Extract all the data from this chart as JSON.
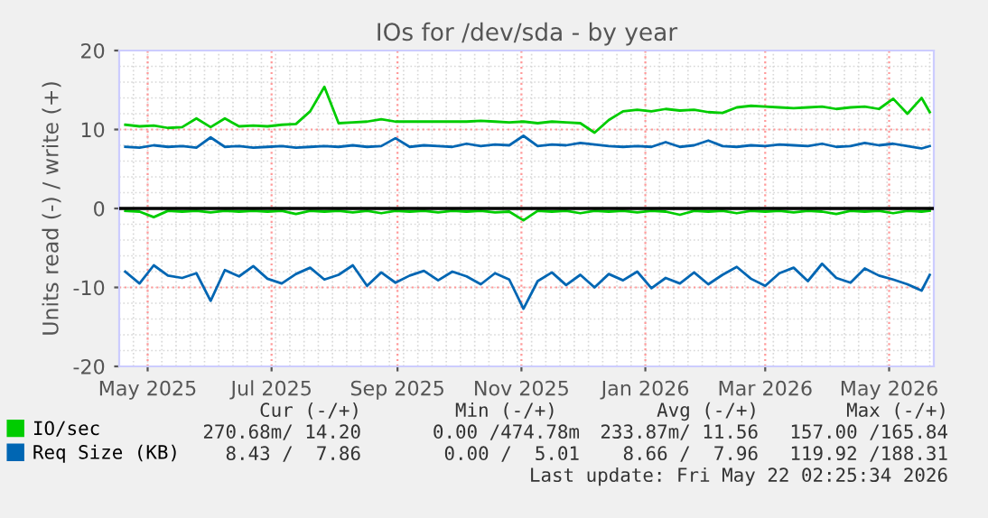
{
  "chart_data": {
    "type": "line",
    "title": "IOs for /dev/sda - by year",
    "ylabel": "Units read (-) / write (+)",
    "x": [
      "2025-04-20",
      "2025-04-27",
      "2025-05-04",
      "2025-05-11",
      "2025-05-18",
      "2025-05-25",
      "2025-06-01",
      "2025-06-08",
      "2025-06-15",
      "2025-06-22",
      "2025-06-29",
      "2025-07-06",
      "2025-07-13",
      "2025-07-20",
      "2025-07-27",
      "2025-08-03",
      "2025-08-10",
      "2025-08-17",
      "2025-08-24",
      "2025-08-31",
      "2025-09-07",
      "2025-09-14",
      "2025-09-21",
      "2025-09-28",
      "2025-10-05",
      "2025-10-12",
      "2025-10-19",
      "2025-10-26",
      "2025-11-02",
      "2025-11-09",
      "2025-11-16",
      "2025-11-23",
      "2025-11-30",
      "2025-12-07",
      "2025-12-14",
      "2025-12-21",
      "2025-12-28",
      "2026-01-04",
      "2026-01-11",
      "2026-01-18",
      "2026-01-25",
      "2026-02-01",
      "2026-02-08",
      "2026-02-15",
      "2026-02-22",
      "2026-03-01",
      "2026-03-08",
      "2026-03-15",
      "2026-03-22",
      "2026-03-29",
      "2026-04-05",
      "2026-04-12",
      "2026-04-19",
      "2026-04-26",
      "2026-05-03",
      "2026-05-10",
      "2026-05-17",
      "2026-05-21"
    ],
    "series": [
      {
        "name": "IO/sec",
        "color": "#00cc00",
        "values": [
          10.6,
          10.4,
          10.5,
          10.2,
          10.3,
          11.4,
          10.3,
          11.4,
          10.4,
          10.5,
          10.4,
          10.6,
          10.7,
          12.3,
          15.4,
          10.8,
          10.9,
          11.0,
          11.3,
          11.0,
          11.0,
          11.0,
          11.0,
          11.0,
          11.0,
          11.1,
          11.0,
          10.9,
          11.0,
          10.8,
          11.0,
          10.9,
          10.8,
          9.6,
          11.2,
          12.3,
          12.5,
          12.3,
          12.6,
          12.4,
          12.5,
          12.2,
          12.1,
          12.8,
          13.0,
          12.9,
          12.8,
          12.7,
          12.8,
          12.9,
          12.6,
          12.8,
          12.9,
          12.6,
          13.9,
          12.0,
          14.0,
          12.2
        ]
      },
      {
        "color": "#00cc00",
        "values": [
          -0.3,
          -0.4,
          -1.1,
          -0.3,
          -0.4,
          -0.3,
          -0.5,
          -0.3,
          -0.4,
          -0.3,
          -0.4,
          -0.3,
          -0.7,
          -0.3,
          -0.4,
          -0.3,
          -0.5,
          -0.3,
          -0.6,
          -0.3,
          -0.4,
          -0.3,
          -0.5,
          -0.3,
          -0.4,
          -0.3,
          -0.5,
          -0.4,
          -1.5,
          -0.3,
          -0.4,
          -0.3,
          -0.6,
          -0.3,
          -0.4,
          -0.3,
          -0.5,
          -0.3,
          -0.4,
          -0.8,
          -0.3,
          -0.4,
          -0.3,
          -0.6,
          -0.3,
          -0.4,
          -0.3,
          -0.5,
          -0.3,
          -0.4,
          -0.7,
          -0.3,
          -0.4,
          -0.3,
          -0.6,
          -0.3,
          -0.4,
          -0.3
        ]
      },
      {
        "name": "Req Size (KB)",
        "color": "#0066b3",
        "values": [
          7.8,
          7.7,
          8.0,
          7.8,
          7.9,
          7.7,
          9.0,
          7.8,
          7.9,
          7.7,
          7.8,
          7.9,
          7.7,
          7.8,
          7.9,
          7.8,
          8.0,
          7.8,
          7.9,
          8.9,
          7.8,
          8.0,
          7.9,
          7.8,
          8.2,
          7.9,
          8.1,
          8.0,
          9.2,
          7.9,
          8.1,
          8.0,
          8.3,
          8.1,
          7.9,
          7.8,
          7.9,
          7.8,
          8.4,
          7.8,
          8.0,
          8.6,
          7.9,
          7.8,
          8.0,
          7.9,
          8.1,
          8.0,
          7.9,
          8.2,
          7.8,
          7.9,
          8.3,
          8.0,
          8.2,
          7.9,
          7.6,
          7.9
        ]
      },
      {
        "color": "#0066b3",
        "values": [
          -8.0,
          -9.5,
          -7.2,
          -8.5,
          -8.8,
          -8.2,
          -11.7,
          -7.8,
          -8.6,
          -7.3,
          -8.9,
          -9.5,
          -8.3,
          -7.5,
          -9.0,
          -8.4,
          -7.2,
          -9.8,
          -8.1,
          -9.4,
          -8.5,
          -7.9,
          -9.1,
          -8.0,
          -8.6,
          -9.6,
          -8.2,
          -9.0,
          -12.7,
          -9.2,
          -8.1,
          -9.7,
          -8.4,
          -10.0,
          -8.3,
          -9.1,
          -8.0,
          -10.1,
          -8.8,
          -9.5,
          -8.1,
          -9.6,
          -8.4,
          -7.4,
          -8.9,
          -9.8,
          -8.2,
          -7.5,
          -9.2,
          -7.0,
          -8.8,
          -9.4,
          -7.6,
          -8.5,
          -9.0,
          -9.6,
          -10.4,
          -8.4
        ]
      }
    ],
    "xlim": [
      "2025-04-17",
      "2026-05-23"
    ],
    "xticks": [
      {
        "value": "2025-05-01",
        "label": "May 2025"
      },
      {
        "value": "2025-07-01",
        "label": "Jul 2025"
      },
      {
        "value": "2025-09-01",
        "label": "Sep 2025"
      },
      {
        "value": "2025-11-01",
        "label": "Nov 2025"
      },
      {
        "value": "2026-01-01",
        "label": "Jan 2026"
      },
      {
        "value": "2026-03-01",
        "label": "Mar 2026"
      },
      {
        "value": "2026-05-01",
        "label": "May 2026"
      }
    ],
    "ylim": [
      -20,
      20
    ],
    "yticks": [
      -20,
      -10,
      0,
      10,
      20
    ],
    "ref_lines": [
      {
        "axis": "y",
        "value": 0,
        "color": "#000000"
      }
    ],
    "grid": true,
    "legend": "bottom left",
    "marker": "none",
    "line_style": "solid",
    "annotations": [
      "Cur (-/+)",
      "Min (-/+)",
      "Avg (-/+)",
      "Max (-/+)",
      "270.68m/ 14.20",
      "0.00 /474.78m",
      "233.87m/ 11.56",
      "157.00 /165.84",
      "8.43 /  7.86",
      "0.00 /  5.01",
      "8.66 /  7.96",
      "119.92 /188.31",
      "Last update: Fri May 22 02:25:34 2026"
    ]
  }
}
